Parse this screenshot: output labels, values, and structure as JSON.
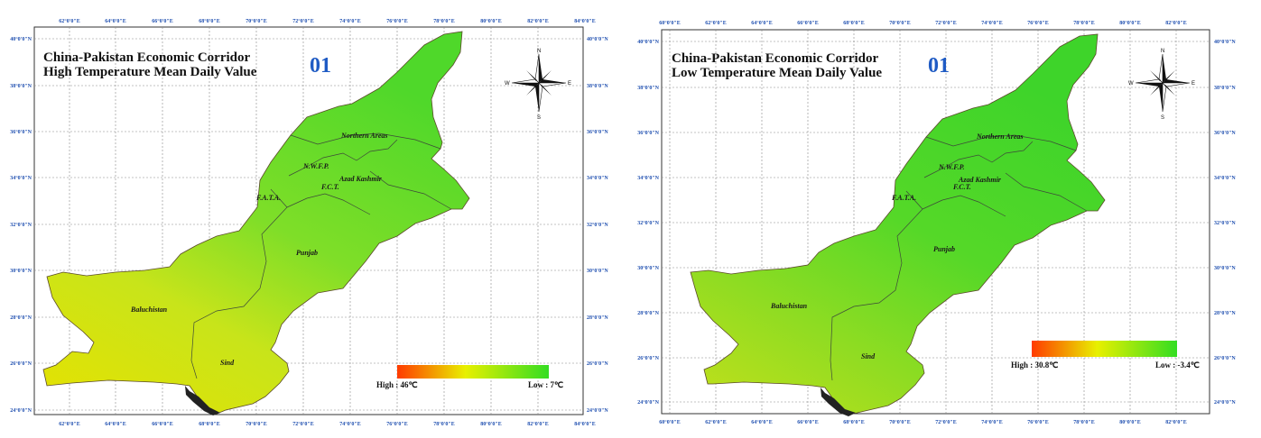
{
  "panels": [
    {
      "title_line1": "China-Pakistan Economic Corridor",
      "title_line2": "High Temperature Mean Daily Value",
      "frame_number": "01",
      "legend": {
        "high_label": "High : 46℃",
        "low_label": "Low : 7℃",
        "high_color": "#ff3b00",
        "mid_color": "#e8f000",
        "low_color": "#33dd22"
      },
      "compass": {
        "n": "N",
        "s": "S",
        "e": "E",
        "w": "W"
      },
      "x_ticks": [
        "62°0'0\"E",
        "64°0'0\"E",
        "66°0'0\"E",
        "68°0'0\"E",
        "70°0'0\"E",
        "72°0'0\"E",
        "74°0'0\"E",
        "76°0'0\"E",
        "78°0'0\"E",
        "80°0'0\"E",
        "82°0'0\"E",
        "84°0'0\"E"
      ],
      "y_ticks": [
        "40°0'0\"N",
        "38°0'0\"N",
        "36°0'0\"N",
        "34°0'0\"N",
        "32°0'0\"N",
        "30°0'0\"N",
        "28°0'0\"N",
        "26°0'0\"N",
        "24°0'0\"N"
      ],
      "regions": [
        "Northern Areas",
        "N.W.F.P.",
        "Azad Kashmir",
        "F.C.T.",
        "F.A.T.A.",
        "Punjab",
        "Baluchistan",
        "Sind"
      ]
    },
    {
      "title_line1": "China-Pakistan Economic Corridor",
      "title_line2": "Low Temperature Mean Daily Value",
      "frame_number": "01",
      "legend": {
        "high_label": "High : 30.8℃",
        "low_label": "Low : -3.4℃",
        "high_color": "#ff3b00",
        "mid_color": "#e8f000",
        "low_color": "#33dd22"
      },
      "compass": {
        "n": "N",
        "s": "S",
        "e": "E",
        "w": "W"
      },
      "x_ticks": [
        "60°0'0\"E",
        "62°0'0\"E",
        "64°0'0\"E",
        "66°0'0\"E",
        "68°0'0\"E",
        "70°0'0\"E",
        "72°0'0\"E",
        "74°0'0\"E",
        "76°0'0\"E",
        "78°0'0\"E",
        "80°0'0\"E",
        "82°0'0\"E"
      ],
      "y_ticks": [
        "40°0'0\"N",
        "38°0'0\"N",
        "36°0'0\"N",
        "34°0'0\"N",
        "32°0'0\"N",
        "30°0'0\"N",
        "28°0'0\"N",
        "26°0'0\"N",
        "24°0'0\"N"
      ],
      "regions": [
        "Northern Areas",
        "N.W.F.P.",
        "Azad Kashmir",
        "F.C.T.",
        "F.A.T.A.",
        "Punjab",
        "Baluchistan",
        "Sind"
      ]
    }
  ]
}
